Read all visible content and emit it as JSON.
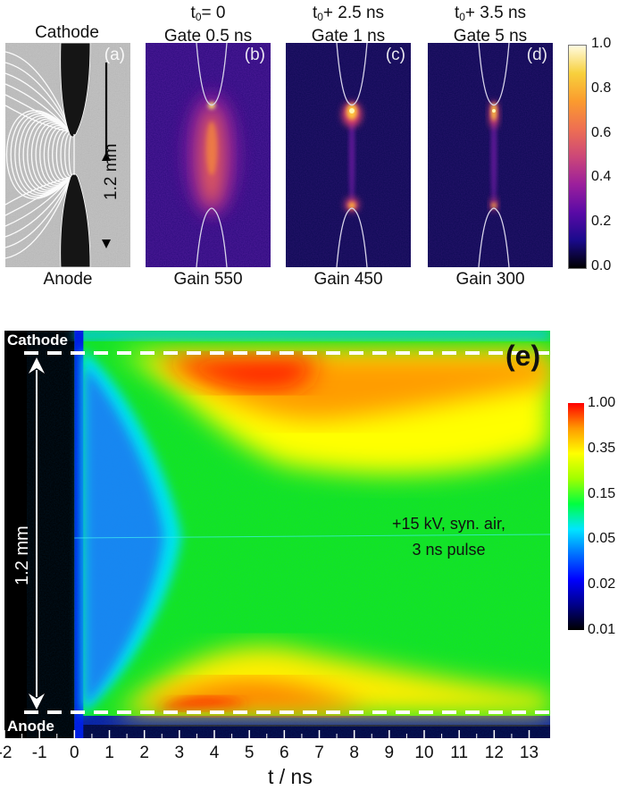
{
  "figure": {
    "top_row": {
      "panels": [
        {
          "id": "a",
          "label": "(a)",
          "header_lines": [
            "Cathode"
          ],
          "footer": "Anode",
          "scale_label": "1.2 mm",
          "type": "photograph with field lines"
        },
        {
          "id": "b",
          "label": "(b)",
          "header_t": "t",
          "header_sub": "0",
          "header_suffix": "= 0",
          "header_line2": "Gate 0.5 ns",
          "footer": "Gain 550"
        },
        {
          "id": "c",
          "label": "(c)",
          "header_t": "t",
          "header_sub": "0",
          "header_suffix": "+ 2.5 ns",
          "header_line2": "Gate 1 ns",
          "footer": "Gain 450"
        },
        {
          "id": "d",
          "label": "(d)",
          "header_t": "t",
          "header_sub": "0",
          "header_suffix": "+ 3.5 ns",
          "header_line2": "Gate 5 ns",
          "footer": "Gain 300"
        }
      ],
      "colorbar": {
        "scale": "linear",
        "colormap": "plasma-like (black-blue-purple-orange-yellow-white)",
        "ticks": [
          "1.0",
          "0.8",
          "0.6",
          "0.4",
          "0.2",
          "0.0"
        ],
        "colors": [
          "#000000",
          "#1a0a8c",
          "#5a0aa6",
          "#9b1f9c",
          "#cc4778",
          "#ee6f52",
          "#fb9b2e",
          "#f7d03c",
          "#fffbe0"
        ]
      }
    },
    "bottom_panel": {
      "label": "(e)",
      "top_electrode": "Cathode",
      "bottom_electrode": "Anode",
      "scale_label": "1.2 mm",
      "annotation_line1": "+15 kV, syn. air,",
      "annotation_line2": "3 ns pulse",
      "colorbar": {
        "scale": "log",
        "ticks": [
          "1.00",
          "0.35",
          "0.15",
          "0.05",
          "0.02",
          "0.01"
        ],
        "colors": [
          "#000000",
          "#00008a",
          "#0000ff",
          "#0070ff",
          "#00e6ff",
          "#00ff40",
          "#a0ff00",
          "#ffff00",
          "#ff9a00",
          "#ff0000"
        ]
      }
    }
  },
  "chart_data": {
    "type": "heatmap",
    "title": "(e)",
    "xlabel": "t / ns",
    "ylabel": "1.2 mm (gap position, cathode top to anode bottom)",
    "xlim": [
      -2,
      13.6
    ],
    "x_ticks": [
      -2,
      -1,
      0,
      1,
      2,
      3,
      4,
      5,
      6,
      7,
      8,
      9,
      10,
      11,
      12,
      13
    ],
    "colorbar_range": [
      0.01,
      1.0
    ],
    "colorbar_scale": "log",
    "description_regions": [
      {
        "region": "t < 0",
        "value": 0.0
      },
      {
        "region": "cathode edge, t 3-6 ns",
        "value": 1.0
      },
      {
        "region": "anode edge, t 3-5 ns",
        "value": 0.7
      },
      {
        "region": "gap center, t 1-2 ns",
        "value": 0.03
      },
      {
        "region": "gap center, t > 4 ns",
        "value": 0.12
      }
    ]
  }
}
